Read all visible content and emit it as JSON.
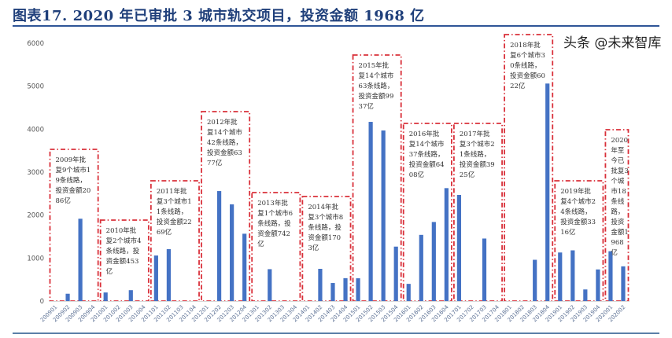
{
  "title": "图表17. 2020 年已审批 3 城市轨交项目，投资金额 1968 亿",
  "watermark": "头条 @未来智库",
  "chart_data": {
    "type": "bar",
    "title": "图表17. 2020 年已审批 3 城市轨交项目，投资金额 1968 亿",
    "xlabel": "",
    "ylabel": "",
    "ylim": [
      0,
      6000
    ],
    "yticks": [
      0,
      1000,
      2000,
      3000,
      4000,
      5000,
      6000
    ],
    "grid": false,
    "bar_color": "#4472c4",
    "box_color": "#d9303a",
    "categories": [
      "200901",
      "200902",
      "200903",
      "200904",
      "201001",
      "201002",
      "201003",
      "201004",
      "201101",
      "201102",
      "201103",
      "201104",
      "201201",
      "201202",
      "201203",
      "201204",
      "201301",
      "201302",
      "201303",
      "201304",
      "201401",
      "201402",
      "201403",
      "201404",
      "201501",
      "201502",
      "201503",
      "201504",
      "201601",
      "201602",
      "201603",
      "201604",
      "201701",
      "201702",
      "201703",
      "201704",
      "201801",
      "201802",
      "201803",
      "201804",
      "201901",
      "201902",
      "201903",
      "201904",
      "202001",
      "202002"
    ],
    "values": [
      0,
      170,
      1916,
      0,
      200,
      0,
      253,
      0,
      1060,
      1209,
      0,
      0,
      0,
      2560,
      2250,
      1567,
      0,
      742,
      0,
      0,
      0,
      750,
      420,
      533,
      530,
      4170,
      3970,
      1267,
      400,
      1540,
      1840,
      2628,
      2470,
      0,
      1455,
      0,
      0,
      0,
      960,
      5062,
      1130,
      1180,
      270,
      736,
      1160,
      808
    ],
    "annotations": [
      {
        "year": "2009",
        "text": "2009年批复9个城市19条线路，投资金额2086亿"
      },
      {
        "year": "2010",
        "text": "2010年批复2个城市4条线路，投资金额453亿"
      },
      {
        "year": "2011",
        "text": "2011年批复3个城市11条线路，投资金额2269亿"
      },
      {
        "year": "2012",
        "text": "2012年批复14个城市42条线路，投资金额6377亿"
      },
      {
        "year": "2013",
        "text": "2013年批复1个城市6条线路，投资金额742亿"
      },
      {
        "year": "2014",
        "text": "2014年批复3个城市8条线路，投资金额1703亿"
      },
      {
        "year": "2015",
        "text": "2015年批复14个城市63条线路，投资金额9937亿"
      },
      {
        "year": "2016",
        "text": "2016年批复14个城市37条线路，投资金额6408亿"
      },
      {
        "year": "2017",
        "text": "2017年批复3个城市21条线路，投资金额3925亿"
      },
      {
        "year": "2018",
        "text": "2018年批复6个城市30条线路，投资金额6022亿"
      },
      {
        "year": "2019",
        "text": "2019年批复4个城市24条线路，投资金额3316亿"
      },
      {
        "year": "2020",
        "text": "2020年至今已批复3个城市18条线路，投资金额1968亿"
      }
    ]
  }
}
